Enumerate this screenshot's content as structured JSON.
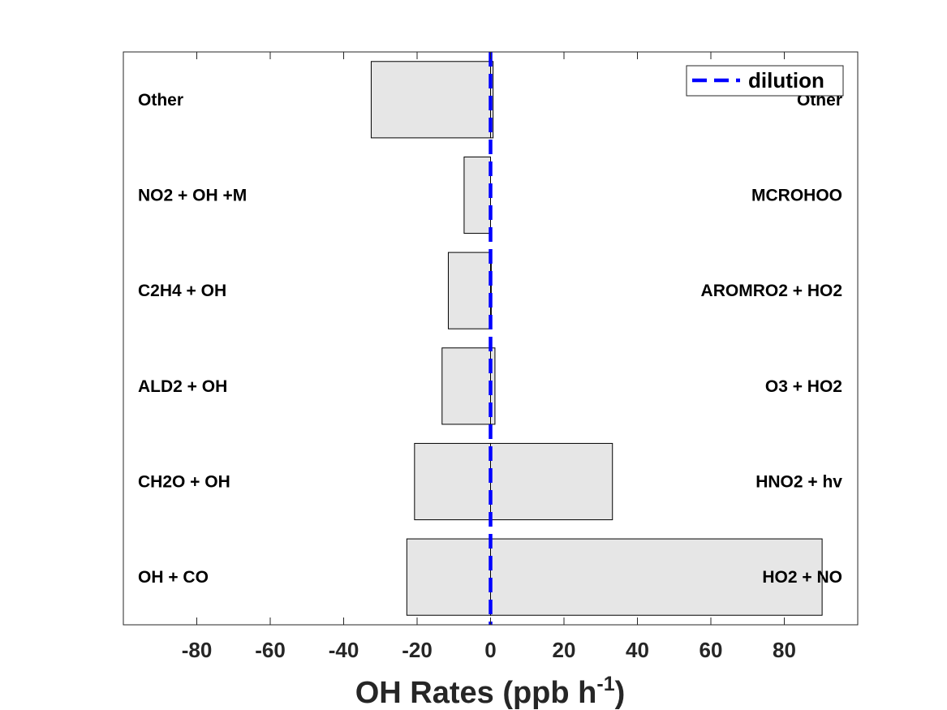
{
  "chart_data": {
    "type": "bar",
    "orientation": "horizontal",
    "xlabel": "OH Rates (ppb h",
    "xlabel_exponent": "-1",
    "xlabel_suffix": ")",
    "xlim": [
      -100,
      100
    ],
    "xticks": [
      -80,
      -60,
      -40,
      -20,
      0,
      20,
      40,
      60,
      80
    ],
    "rows": [
      {
        "loss_label": "Other",
        "loss_value": -32.5,
        "prod_label": "Other",
        "prod_value": 0.7
      },
      {
        "loss_label": "NO2 + OH +M",
        "loss_value": -7.2,
        "prod_label": "MCROHOO",
        "prod_value": 0.0
      },
      {
        "loss_label": "C2H4 + OH",
        "loss_value": -11.5,
        "prod_label": "AROMRO2 + HO2",
        "prod_value": 0.2
      },
      {
        "loss_label": "ALD2 + OH",
        "loss_value": -13.2,
        "prod_label": "O3 + HO2",
        "prod_value": 1.2
      },
      {
        "loss_label": "CH2O + OH",
        "loss_value": -20.7,
        "prod_label": "HNO2 + hv",
        "prod_value": 33.2
      },
      {
        "loss_label": "OH + CO",
        "loss_value": -22.8,
        "prod_label": "HO2 + NO",
        "prod_value": 90.3
      }
    ],
    "dilution": {
      "name": "dilution",
      "value": 0,
      "color": "#0000ff",
      "style": "dashed"
    },
    "legend_position": "top-right",
    "bar_fill": "#e6e6e6",
    "bar_edge": "#000000",
    "grid": false
  }
}
